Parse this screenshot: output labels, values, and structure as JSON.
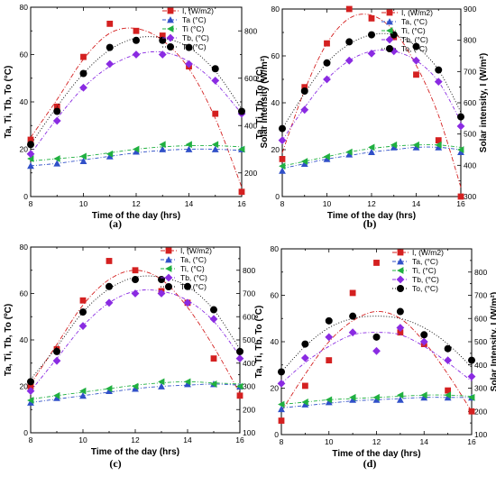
{
  "chart_data": [
    {
      "type": "scatter",
      "caption": "(a)",
      "xlabel": "Time of the day (hrs)",
      "ylabel": "Ta, Ti, Tb, To (°C)",
      "y2label": "Solar intensity (W/m²)",
      "xlim": [
        8,
        16
      ],
      "ylim": [
        0,
        80
      ],
      "y2lim": [
        100,
        900
      ],
      "xticks": [
        8,
        10,
        12,
        14,
        16
      ],
      "yticks": [
        0,
        20,
        40,
        60,
        80
      ],
      "y2ticks": [
        200,
        400,
        600,
        800
      ],
      "legend_position": "top-right",
      "series": [
        {
          "name": "I, (W/m2)",
          "axis": "right",
          "color": "#d42020",
          "marker": "square",
          "x": [
            8,
            9,
            10,
            11,
            12,
            13,
            14,
            15,
            16
          ],
          "y": [
            340,
            480,
            690,
            830,
            800,
            780,
            650,
            450,
            120
          ],
          "fit": [
            350,
            510,
            680,
            790,
            810,
            760,
            640,
            430,
            140
          ]
        },
        {
          "name": "Ta (°C)",
          "axis": "left",
          "color": "#3050c8",
          "marker": "triangle",
          "x": [
            8,
            9,
            10,
            11,
            12,
            13,
            14,
            15,
            16
          ],
          "y": [
            13,
            14,
            15,
            17,
            19,
            20,
            20,
            20,
            20
          ],
          "fit": [
            13,
            14,
            15.5,
            17,
            18.5,
            19.5,
            20,
            20,
            19.5
          ]
        },
        {
          "name": "Ti (°C)",
          "axis": "left",
          "color": "#20b040",
          "marker": "triangle-left",
          "x": [
            8,
            9,
            10,
            11,
            12,
            13,
            14,
            15,
            16
          ],
          "y": [
            16,
            16,
            17,
            18,
            20,
            22,
            22,
            22,
            20
          ],
          "fit": [
            15,
            16,
            17,
            18.5,
            20,
            21,
            21.5,
            21.5,
            21
          ]
        },
        {
          "name": "Tb, (°C)",
          "axis": "left",
          "color": "#8a2be2",
          "marker": "diamond",
          "x": [
            8,
            9,
            10,
            11,
            12,
            13,
            14,
            15,
            16
          ],
          "y": [
            18,
            32,
            46,
            56,
            60,
            60,
            56,
            49,
            35
          ],
          "fit": [
            18,
            33,
            46,
            55,
            60,
            61,
            57,
            48,
            35
          ]
        },
        {
          "name": "To (°C)",
          "axis": "left",
          "color": "#000000",
          "marker": "circle",
          "x": [
            8,
            9,
            10,
            11,
            12,
            13,
            14,
            15,
            16
          ],
          "y": [
            22,
            36,
            52,
            63,
            66,
            66,
            63,
            54,
            36
          ],
          "fit": [
            22,
            38,
            52,
            62,
            67,
            67,
            63,
            53,
            37
          ]
        }
      ]
    },
    {
      "type": "scatter",
      "caption": "(b)",
      "xlabel": "Time of the day (hrs)",
      "ylabel": "Ta, Ti, Tb, To (°C)",
      "y2label": "Solar intensity, I (W/m²)",
      "xlim": [
        8,
        16
      ],
      "ylim": [
        0,
        80
      ],
      "y2lim": [
        300,
        900
      ],
      "xticks": [
        8,
        10,
        12,
        14,
        16
      ],
      "yticks": [
        0,
        20,
        40,
        60,
        80
      ],
      "y2ticks": [
        300,
        400,
        500,
        600,
        700,
        800,
        900
      ],
      "legend_position": "top-right",
      "series": [
        {
          "name": "I, (W/m2)",
          "axis": "right",
          "color": "#d42020",
          "marker": "square",
          "x": [
            8,
            9,
            10,
            11,
            12,
            13,
            14,
            15,
            16
          ],
          "y": [
            420,
            650,
            790,
            900,
            870,
            810,
            690,
            480,
            300
          ],
          "fit": [
            440,
            640,
            790,
            870,
            880,
            830,
            720,
            560,
            330
          ]
        },
        {
          "name": "Ta, (°C)",
          "axis": "left",
          "color": "#3050c8",
          "marker": "triangle",
          "x": [
            8,
            9,
            10,
            11,
            12,
            13,
            14,
            15,
            16
          ],
          "y": [
            11,
            14,
            16,
            18,
            19,
            21,
            21,
            21,
            19
          ],
          "fit": [
            12,
            14,
            16,
            17.5,
            19,
            20,
            21,
            21,
            20
          ]
        },
        {
          "name": "Ti, (°C)",
          "axis": "left",
          "color": "#20b040",
          "marker": "triangle-left",
          "x": [
            8,
            9,
            10,
            11,
            12,
            13,
            14,
            15,
            16
          ],
          "y": [
            13,
            15,
            17,
            19,
            21,
            22,
            22,
            22,
            20
          ],
          "fit": [
            13,
            15,
            17,
            19,
            20.5,
            21.5,
            22,
            22,
            21
          ]
        },
        {
          "name": "Tb, (°C)",
          "axis": "left",
          "color": "#8a2be2",
          "marker": "diamond",
          "x": [
            8,
            9,
            10,
            11,
            12,
            13,
            14,
            15,
            16
          ],
          "y": [
            24,
            37,
            50,
            58,
            61,
            62,
            58,
            49,
            30
          ],
          "fit": [
            24,
            38,
            50,
            58,
            62,
            62,
            58,
            49,
            32
          ]
        },
        {
          "name": "To, (°C)",
          "axis": "left",
          "color": "#000000",
          "marker": "circle",
          "x": [
            8,
            9,
            10,
            11,
            12,
            13,
            14,
            15,
            16
          ],
          "y": [
            29,
            45,
            57,
            66,
            69,
            69,
            64,
            54,
            34
          ],
          "fit": [
            29,
            44,
            57,
            65,
            69,
            69,
            64,
            54,
            36
          ]
        }
      ]
    },
    {
      "type": "scatter",
      "caption": "(c)",
      "xlabel": "Time of the day (hrs)",
      "ylabel": "Ta, Ti, Tb, To (ºC)",
      "y2label": "",
      "xlim": [
        8,
        16
      ],
      "ylim": [
        0,
        80
      ],
      "y2lim": [
        100,
        900
      ],
      "xticks": [
        8,
        10,
        12,
        14,
        16
      ],
      "yticks": [
        0,
        20,
        40,
        60,
        80
      ],
      "y2ticks": [
        100,
        200,
        300,
        400,
        500,
        600,
        700,
        800
      ],
      "legend_position": "top-right",
      "series": [
        {
          "name": "I, (W/m2)",
          "axis": "right",
          "color": "#d42020",
          "marker": "square",
          "x": [
            8,
            9,
            10,
            11,
            12,
            13,
            14,
            15,
            16
          ],
          "y": [
            300,
            460,
            670,
            840,
            800,
            710,
            660,
            420,
            260
          ],
          "fit": [
            310,
            480,
            650,
            760,
            800,
            760,
            640,
            470,
            270
          ]
        },
        {
          "name": "Ta, (°C)",
          "axis": "left",
          "color": "#3050c8",
          "marker": "triangle",
          "x": [
            8,
            9,
            10,
            11,
            12,
            13,
            14,
            15,
            16
          ],
          "y": [
            13,
            15,
            16,
            18,
            19,
            20,
            21,
            21,
            20
          ],
          "fit": [
            13,
            14.5,
            16,
            17.5,
            19,
            20,
            20.5,
            21,
            20.5
          ]
        },
        {
          "name": "Ti, (°C)",
          "axis": "left",
          "color": "#20b040",
          "marker": "triangle-left",
          "x": [
            8,
            9,
            10,
            11,
            12,
            13,
            14,
            15,
            16
          ],
          "y": [
            14,
            16,
            18,
            19,
            20,
            22,
            22,
            21,
            20
          ],
          "fit": [
            14.5,
            16,
            17.5,
            19,
            20.5,
            21.5,
            22,
            21.5,
            21
          ]
        },
        {
          "name": "Tb, (°C)",
          "axis": "left",
          "color": "#8a2be2",
          "marker": "diamond",
          "x": [
            8,
            9,
            10,
            11,
            12,
            13,
            14,
            15,
            16
          ],
          "y": [
            18,
            31,
            46,
            56,
            60,
            60,
            56,
            49,
            32
          ],
          "fit": [
            18,
            32,
            46,
            56,
            61,
            61,
            57,
            48,
            33
          ]
        },
        {
          "name": "To, (°C)",
          "axis": "left",
          "color": "#000000",
          "marker": "circle",
          "x": [
            8,
            9,
            10,
            11,
            12,
            13,
            14,
            15,
            16
          ],
          "y": [
            22,
            35,
            52,
            63,
            66,
            66,
            63,
            53,
            35
          ],
          "fit": [
            23,
            37,
            52,
            62,
            67,
            67,
            63,
            53,
            36
          ]
        }
      ]
    },
    {
      "type": "scatter",
      "caption": "(d)",
      "xlabel": "Time of the day (hrs)",
      "ylabel": "Ta, Ti, Tb, To (°C)",
      "y2label": "Solar Intensity, I (W/m²)",
      "xlim": [
        8,
        16
      ],
      "ylim": [
        0,
        80
      ],
      "y2lim": [
        100,
        900
      ],
      "xticks": [
        8,
        10,
        12,
        14,
        16
      ],
      "yticks": [
        0,
        20,
        40,
        60,
        80
      ],
      "y2ticks": [
        100,
        200,
        300,
        400,
        500,
        600,
        700,
        800
      ],
      "legend_position": "top-right",
      "series": [
        {
          "name": "I, (W/m2)",
          "axis": "right",
          "color": "#d42020",
          "marker": "square",
          "x": [
            8,
            9,
            10,
            11,
            12,
            13,
            14,
            15,
            16
          ],
          "y": [
            160,
            310,
            420,
            710,
            840,
            540,
            490,
            290,
            200
          ],
          "fit": [
            200,
            360,
            500,
            590,
            630,
            600,
            500,
            360,
            200
          ]
        },
        {
          "name": "Ta, (°C)",
          "axis": "left",
          "color": "#3050c8",
          "marker": "triangle",
          "x": [
            8,
            9,
            10,
            11,
            12,
            13,
            14,
            15,
            16
          ],
          "y": [
            11,
            13,
            14,
            15,
            15,
            15,
            16,
            16,
            16
          ],
          "fit": [
            11.5,
            12.5,
            13.5,
            14.5,
            15,
            15.5,
            16,
            16,
            16
          ]
        },
        {
          "name": "Ti, (°C)",
          "axis": "left",
          "color": "#20b040",
          "marker": "triangle-left",
          "x": [
            8,
            9,
            10,
            11,
            12,
            13,
            14,
            15,
            16
          ],
          "y": [
            13,
            14,
            15,
            16,
            16,
            17,
            17,
            17,
            16
          ],
          "fit": [
            13,
            14,
            15,
            15.5,
            16,
            16.5,
            17,
            17,
            16.5
          ]
        },
        {
          "name": "Tb, (°C)",
          "axis": "left",
          "color": "#8a2be2",
          "marker": "diamond",
          "x": [
            8,
            9,
            10,
            11,
            12,
            13,
            14,
            15,
            16
          ],
          "y": [
            22,
            33,
            42,
            44,
            36,
            46,
            40,
            32,
            25
          ],
          "fit": [
            22,
            31,
            38,
            43,
            44,
            43,
            38,
            31,
            23
          ]
        },
        {
          "name": "To, (°C)",
          "axis": "left",
          "color": "#000000",
          "marker": "circle",
          "x": [
            8,
            9,
            10,
            11,
            12,
            13,
            14,
            15,
            16
          ],
          "y": [
            27,
            39,
            49,
            51,
            42,
            53,
            43,
            37,
            32
          ],
          "fit": [
            27,
            38,
            46,
            50,
            51,
            50,
            46,
            39,
            29
          ]
        }
      ]
    }
  ]
}
